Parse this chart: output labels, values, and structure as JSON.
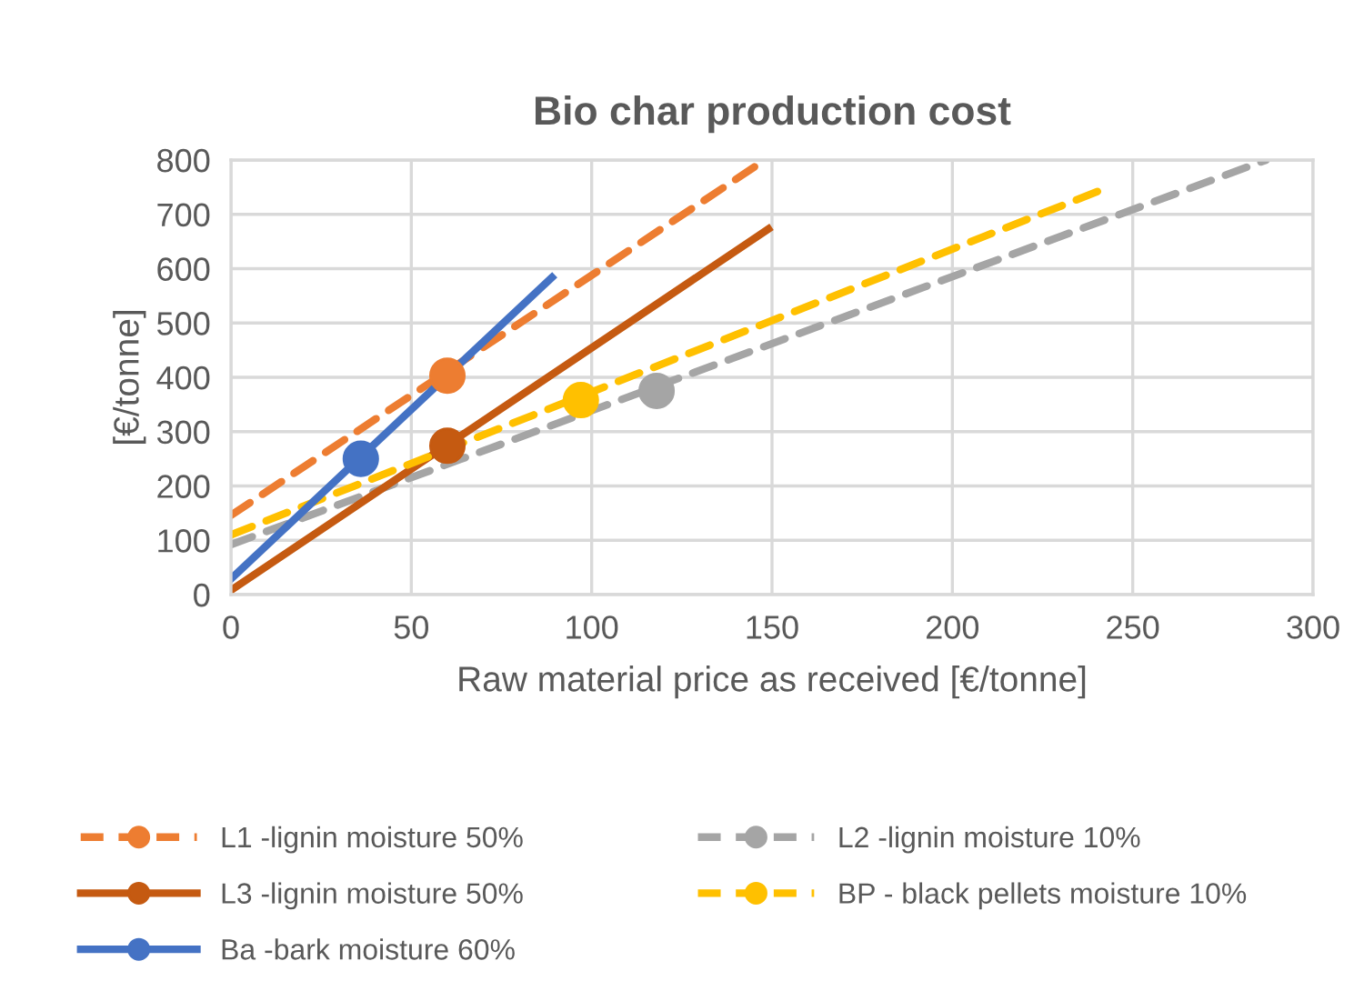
{
  "chart_data": {
    "type": "line",
    "title": "Bio char production cost",
    "xlabel": "Raw material price as received [€/tonne]",
    "ylabel": "[€/tonne]",
    "xlim": [
      0,
      300
    ],
    "xticks": [
      0,
      50,
      100,
      150,
      200,
      250,
      300
    ],
    "ylim": [
      0,
      800
    ],
    "yticks": [
      0,
      100,
      200,
      300,
      400,
      500,
      600,
      700,
      800
    ],
    "grid": true,
    "legend": "bottom",
    "series": [
      {
        "color": "#ed7d31",
        "line_style": "dashed",
        "x": [
          0,
          148
        ],
        "values": [
          146,
          800
        ]
      },
      {
        "type": "scatter",
        "name": "L1 -lignin moisture 50%",
        "color": "#ed7d31",
        "marker": "circle",
        "x": [
          60
        ],
        "values": [
          403
        ]
      },
      {
        "color": "#a5a5a5",
        "line_style": "dashed",
        "x": [
          0,
          287
        ],
        "values": [
          92,
          800
        ]
      },
      {
        "type": "scatter",
        "name": "L2 -lignin moisture 10%",
        "color": "#a5a5a5",
        "marker": "circle",
        "x": [
          118
        ],
        "values": [
          375
        ]
      },
      {
        "color": "#c55a11",
        "line_style": "solid",
        "x": [
          0,
          149
        ],
        "values": [
          8,
          673
        ]
      },
      {
        "type": "scatter",
        "name": "L3 -lignin moisture 50%",
        "color": "#c55a11",
        "marker": "circle",
        "x": [
          60
        ],
        "values": [
          274
        ]
      },
      {
        "color": "#ffc000",
        "line_style": "dashed",
        "x": [
          0,
          241
        ],
        "values": [
          110,
          744
        ]
      },
      {
        "type": "scatter",
        "name": "BP - black pellets moisture 10%",
        "color": "#ffc000",
        "marker": "circle",
        "x": [
          97
        ],
        "values": [
          358
        ]
      },
      {
        "color": "#4472c4",
        "line_style": "solid",
        "x": [
          0,
          89
        ],
        "values": [
          29,
          584
        ]
      },
      {
        "type": "scatter",
        "name": "Ba -bark moisture 60%",
        "color": "#4472c4",
        "marker": "circle",
        "x": [
          36
        ],
        "values": [
          250
        ]
      }
    ]
  }
}
